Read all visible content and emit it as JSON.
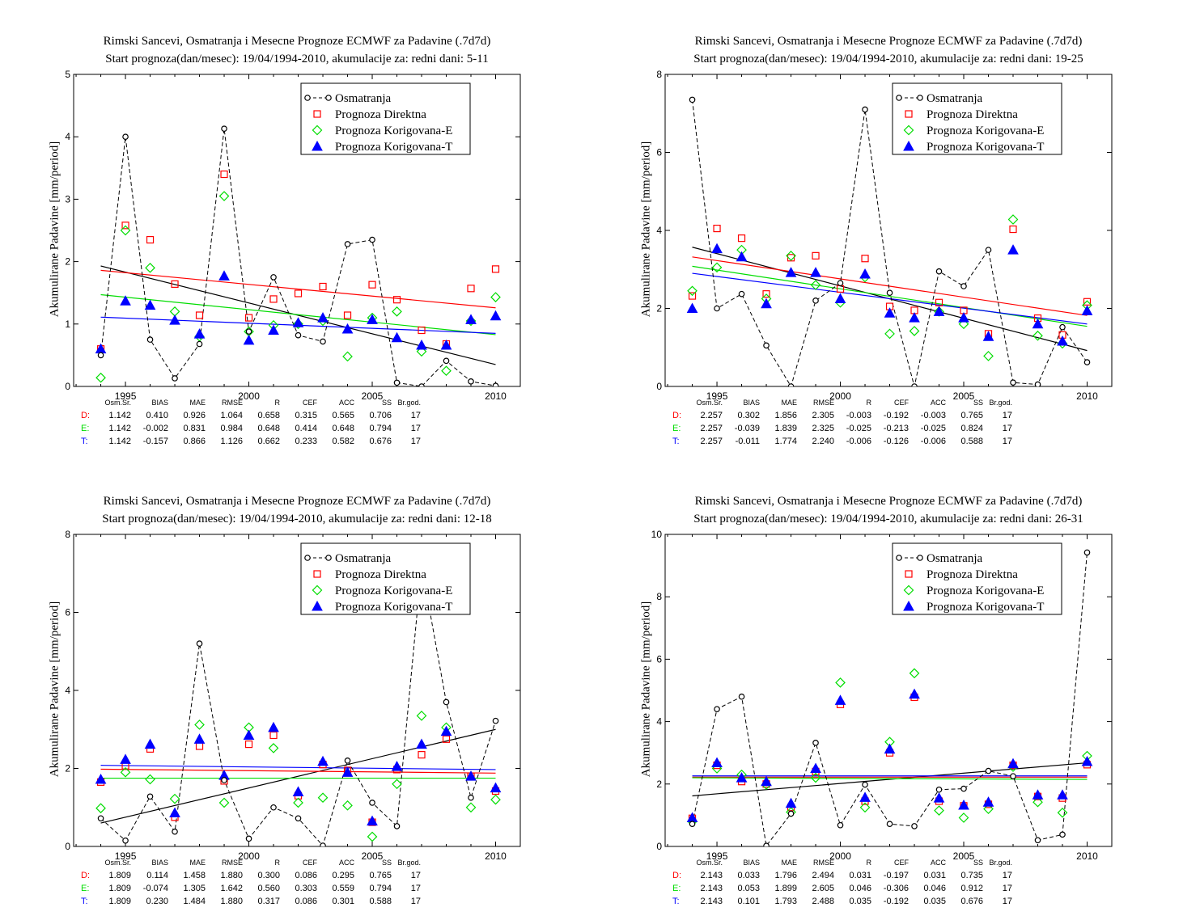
{
  "colors": {
    "observed": "#000000",
    "direct": "#ff0000",
    "corrE": "#00dd00",
    "corrT": "#0000ff"
  },
  "stat_headers": [
    "Osm.Sr.",
    "BIAS",
    "MAE",
    "RMSE",
    "R",
    "CEF",
    "ACC",
    "SS",
    "Br.god."
  ],
  "panels": [
    {
      "title1": "Rimski Sancevi, Osmatranja i Mesecne Prognoze ECMWF za Padavine (.7d7d)",
      "title2": "Start prognoza(dan/mesec): 19/04/1994-2010, akumulacije za: redni dani: 5-11",
      "ylabel": "Akumulirane Padavine [mm/period]",
      "stats": [
        {
          "label": "D:",
          "values": [
            "1.142",
            "0.410",
            "0.926",
            "1.064",
            "0.658",
            "0.315",
            "0.565",
            "0.706",
            "17"
          ]
        },
        {
          "label": "E:",
          "values": [
            "1.142",
            "-0.002",
            "0.831",
            "0.984",
            "0.648",
            "0.414",
            "0.648",
            "0.794",
            "17"
          ]
        },
        {
          "label": "T:",
          "values": [
            "1.142",
            "-0.157",
            "0.866",
            "1.126",
            "0.662",
            "0.233",
            "0.582",
            "0.676",
            "17"
          ]
        }
      ],
      "chart_data": {
        "type": "scatter",
        "x": [
          1994,
          1995,
          1996,
          1997,
          1998,
          1999,
          2000,
          2001,
          2002,
          2003,
          2004,
          2005,
          2006,
          2007,
          2008,
          2009,
          2010
        ],
        "xlim": [
          1992.9,
          2011
        ],
        "xticks": [
          1995,
          2000,
          2005,
          2010
        ],
        "ylim": [
          0,
          5
        ],
        "yticks": [
          0,
          1,
          2,
          3,
          4,
          5
        ],
        "legend": [
          "Osmatranja",
          "Prognoza Direktna",
          "Prognoza Korigovana-E",
          "Prognoza Korigovana-T"
        ],
        "legend_position": "top-right",
        "series": [
          {
            "name": "Osmatranja",
            "style": "dashed-circle",
            "values": [
              0.5,
              4.0,
              0.75,
              0.13,
              0.68,
              4.13,
              0.88,
              1.75,
              0.82,
              0.72,
              2.28,
              2.35,
              0.06,
              0.0,
              0.41,
              0.08,
              0.01
            ]
          },
          {
            "name": "Prognoza Direktna",
            "style": "square",
            "values": [
              0.6,
              2.58,
              2.35,
              1.64,
              1.14,
              3.4,
              1.1,
              1.4,
              1.49,
              1.6,
              1.14,
              1.63,
              1.39,
              0.9,
              0.68,
              1.57,
              1.88
            ]
          },
          {
            "name": "Prognoza Korigovana-E",
            "style": "diamond",
            "values": [
              0.14,
              2.5,
              1.9,
              1.2,
              0.8,
              3.05,
              0.88,
              0.98,
              1.0,
              1.05,
              0.48,
              1.1,
              1.2,
              0.56,
              0.25,
              1.05,
              1.43
            ]
          },
          {
            "name": "Prognoza Korigovana-T",
            "style": "triangle",
            "values": [
              0.6,
              1.37,
              1.3,
              1.06,
              0.84,
              1.77,
              0.74,
              0.9,
              1.02,
              1.1,
              0.92,
              1.07,
              0.78,
              0.66,
              0.66,
              1.07,
              1.13
            ]
          }
        ],
        "trends": [
          {
            "series": "Osmatranja",
            "y_start": 1.93,
            "y_end": 0.35
          },
          {
            "series": "Prognoza Direktna",
            "y_start": 1.86,
            "y_end": 1.26
          },
          {
            "series": "Prognoza Korigovana-E",
            "y_start": 1.47,
            "y_end": 0.83
          },
          {
            "series": "Prognoza Korigovana-T",
            "y_start": 1.11,
            "y_end": 0.85
          }
        ]
      }
    },
    {
      "title1": "Rimski Sancevi, Osmatranja i Mesecne Prognoze ECMWF za Padavine (.7d7d)",
      "title2": "Start prognoza(dan/mesec): 19/04/1994-2010, akumulacije za: redni dani: 19-25",
      "ylabel": "Akumulirane Padavine [mm/period]",
      "stats": [
        {
          "label": "D:",
          "values": [
            "2.257",
            "0.302",
            "1.856",
            "2.305",
            "-0.003",
            "-0.192",
            "-0.003",
            "0.765",
            "17"
          ]
        },
        {
          "label": "E:",
          "values": [
            "2.257",
            "-0.039",
            "1.839",
            "2.325",
            "-0.025",
            "-0.213",
            "-0.025",
            "0.824",
            "17"
          ]
        },
        {
          "label": "T:",
          "values": [
            "2.257",
            "-0.011",
            "1.774",
            "2.240",
            "-0.006",
            "-0.126",
            "-0.006",
            "0.588",
            "17"
          ]
        }
      ],
      "chart_data": {
        "type": "scatter",
        "x": [
          1994,
          1995,
          1996,
          1997,
          1998,
          1999,
          2000,
          2001,
          2002,
          2003,
          2004,
          2005,
          2006,
          2007,
          2008,
          2009,
          2010
        ],
        "xlim": [
          1992.9,
          2011
        ],
        "xticks": [
          1995,
          2000,
          2005,
          2010
        ],
        "ylim": [
          0,
          8
        ],
        "yticks": [
          0,
          2,
          4,
          6,
          8
        ],
        "legend": [
          "Osmatranja",
          "Prognoza Direktna",
          "Prognoza Korigovana-E",
          "Prognoza Korigovana-T"
        ],
        "legend_position": "top-right",
        "series": [
          {
            "name": "Osmatranja",
            "style": "dashed-circle",
            "values": [
              7.35,
              2.0,
              2.37,
              1.05,
              0.0,
              2.2,
              2.65,
              7.1,
              2.4,
              0.0,
              2.95,
              2.57,
              3.5,
              0.1,
              0.05,
              1.52,
              0.62
            ]
          },
          {
            "name": "Prognoza Direktna",
            "style": "square",
            "values": [
              2.32,
              4.05,
              3.8,
              2.37,
              3.3,
              3.35,
              2.5,
              3.28,
              2.05,
              1.95,
              2.15,
              1.95,
              1.35,
              4.03,
              1.75,
              1.32,
              2.17
            ]
          },
          {
            "name": "Prognoza Korigovana-E",
            "style": "diamond",
            "values": [
              2.45,
              3.05,
              3.5,
              2.25,
              3.35,
              2.6,
              2.15,
              2.8,
              1.35,
              1.42,
              1.92,
              1.6,
              0.78,
              4.28,
              1.3,
              1.1,
              2.08
            ]
          },
          {
            "name": "Prognoza Korigovana-T",
            "style": "triangle",
            "values": [
              2.0,
              3.53,
              3.32,
              2.12,
              2.92,
              2.92,
              2.25,
              2.88,
              1.88,
              1.76,
              1.92,
              1.76,
              1.28,
              3.5,
              1.6,
              1.16,
              1.94
            ]
          }
        ],
        "trends": [
          {
            "series": "Osmatranja",
            "y_start": 3.57,
            "y_end": 0.92
          },
          {
            "series": "Prognoza Direktna",
            "y_start": 3.32,
            "y_end": 1.82
          },
          {
            "series": "Prognoza Korigovana-E",
            "y_start": 3.08,
            "y_end": 1.54
          },
          {
            "series": "Prognoza Korigovana-T",
            "y_start": 2.9,
            "y_end": 1.6
          }
        ]
      }
    },
    {
      "title1": "Rimski Sancevi, Osmatranja i Mesecne Prognoze ECMWF za Padavine (.7d7d)",
      "title2": "Start prognoza(dan/mesec): 19/04/1994-2010, akumulacije za: redni dani: 12-18",
      "ylabel": "Akumulirane Padavine [mm/period]",
      "stats": [
        {
          "label": "D:",
          "values": [
            "1.809",
            "0.114",
            "1.458",
            "1.880",
            "0.300",
            "0.086",
            "0.295",
            "0.765",
            "17"
          ]
        },
        {
          "label": "E:",
          "values": [
            "1.809",
            "-0.074",
            "1.305",
            "1.642",
            "0.560",
            "0.303",
            "0.559",
            "0.794",
            "17"
          ]
        },
        {
          "label": "T:",
          "values": [
            "1.809",
            "0.230",
            "1.484",
            "1.880",
            "0.317",
            "0.086",
            "0.301",
            "0.588",
            "17"
          ]
        }
      ],
      "chart_data": {
        "type": "scatter",
        "x": [
          1994,
          1995,
          1996,
          1997,
          1998,
          1999,
          2000,
          2001,
          2002,
          2003,
          2004,
          2005,
          2006,
          2007,
          2008,
          2009,
          2010
        ],
        "xlim": [
          1992.9,
          2011
        ],
        "xticks": [
          1995,
          2000,
          2005,
          2010
        ],
        "ylim": [
          0,
          8
        ],
        "yticks": [
          0,
          2,
          4,
          6,
          8
        ],
        "legend": [
          "Osmatranja",
          "Prognoza Direktna",
          "Prognoza Korigovana-E",
          "Prognoza Korigovana-T"
        ],
        "legend_position": "top-right",
        "series": [
          {
            "name": "Osmatranja",
            "style": "dashed-circle",
            "values": [
              0.72,
              0.15,
              1.28,
              0.38,
              5.2,
              1.7,
              0.2,
              1.0,
              0.72,
              0.02,
              2.2,
              1.12,
              0.52,
              7.2,
              3.7,
              1.25,
              3.22
            ]
          },
          {
            "name": "Prognoza Direktna",
            "style": "square",
            "values": [
              1.65,
              2.07,
              2.5,
              0.75,
              2.57,
              1.68,
              2.62,
              2.85,
              1.3,
              2.1,
              1.95,
              0.62,
              1.97,
              2.35,
              2.75,
              1.8,
              1.42
            ]
          },
          {
            "name": "Prognoza Korigovana-E",
            "style": "diamond",
            "values": [
              0.98,
              1.9,
              1.72,
              1.22,
              3.12,
              1.12,
              3.05,
              2.52,
              1.12,
              1.25,
              1.05,
              0.25,
              1.6,
              3.35,
              3.05,
              1.0,
              1.2
            ]
          },
          {
            "name": "Prognoza Korigovana-T",
            "style": "triangle",
            "values": [
              1.72,
              2.23,
              2.62,
              0.86,
              2.75,
              1.82,
              2.85,
              3.05,
              1.4,
              2.18,
              1.9,
              0.65,
              2.05,
              2.62,
              2.95,
              1.8,
              1.5
            ]
          }
        ],
        "trends": [
          {
            "series": "Osmatranja",
            "y_start": 0.6,
            "y_end": 3.0
          },
          {
            "series": "Prognoza Direktna",
            "y_start": 1.98,
            "y_end": 1.88
          },
          {
            "series": "Prognoza Korigovana-E",
            "y_start": 1.75,
            "y_end": 1.75
          },
          {
            "series": "Prognoza Korigovana-T",
            "y_start": 2.08,
            "y_end": 1.97
          }
        ]
      }
    },
    {
      "title1": "Rimski Sancevi, Osmatranja i Mesecne Prognoze ECMWF za Padavine (.7d7d)",
      "title2": "Start prognoza(dan/mesec): 19/04/1994-2010, akumulacije za: redni dani: 26-31",
      "ylabel": "Akumulirane Padavine [mm/period]",
      "stats": [
        {
          "label": "D:",
          "values": [
            "2.143",
            "0.033",
            "1.796",
            "2.494",
            "0.031",
            "-0.197",
            "0.031",
            "0.735",
            "17"
          ]
        },
        {
          "label": "E:",
          "values": [
            "2.143",
            "0.053",
            "1.899",
            "2.605",
            "0.046",
            "-0.306",
            "0.046",
            "0.912",
            "17"
          ]
        },
        {
          "label": "T:",
          "values": [
            "2.143",
            "0.101",
            "1.793",
            "2.488",
            "0.035",
            "-0.192",
            "0.035",
            "0.676",
            "17"
          ]
        }
      ],
      "chart_data": {
        "type": "scatter",
        "x": [
          1994,
          1995,
          1996,
          1997,
          1998,
          1999,
          2000,
          2001,
          2002,
          2003,
          2004,
          2005,
          2006,
          2007,
          2008,
          2009,
          2010
        ],
        "xlim": [
          1992.9,
          2011
        ],
        "xticks": [
          1995,
          2000,
          2005,
          2010
        ],
        "ylim": [
          0,
          10
        ],
        "yticks": [
          0,
          2,
          4,
          6,
          8,
          10
        ],
        "legend": [
          "Osmatranja",
          "Prognoza Direktna",
          "Prognoza Korigovana-E",
          "Prognoza Korigovana-T"
        ],
        "legend_position": "top-right",
        "series": [
          {
            "name": "Osmatranja",
            "style": "dashed-circle",
            "values": [
              0.72,
              4.4,
              4.8,
              0.02,
              1.05,
              3.32,
              0.68,
              1.98,
              0.72,
              0.65,
              1.82,
              1.85,
              2.42,
              2.25,
              0.2,
              0.38,
              9.42
            ]
          },
          {
            "name": "Prognoza Direktna",
            "style": "square",
            "values": [
              0.9,
              2.6,
              2.08,
              2.0,
              1.25,
              2.4,
              4.55,
              1.45,
              3.0,
              4.78,
              1.45,
              1.3,
              1.35,
              2.6,
              1.6,
              1.55,
              2.62
            ]
          },
          {
            "name": "Prognoza Korigovana-E",
            "style": "diamond",
            "values": [
              0.8,
              2.5,
              2.3,
              1.98,
              1.1,
              2.2,
              5.25,
              1.25,
              3.35,
              5.55,
              1.15,
              0.92,
              1.2,
              2.55,
              1.42,
              1.08,
              2.9
            ]
          },
          {
            "name": "Prognoza Korigovana-T",
            "style": "triangle",
            "values": [
              0.92,
              2.68,
              2.2,
              2.08,
              1.38,
              2.5,
              4.68,
              1.57,
              3.12,
              4.88,
              1.55,
              1.32,
              1.42,
              2.65,
              1.65,
              1.65,
              2.72
            ]
          }
        ],
        "trends": [
          {
            "series": "Osmatranja",
            "y_start": 1.62,
            "y_end": 2.68
          },
          {
            "series": "Prognoza Direktna",
            "y_start": 2.22,
            "y_end": 2.22
          },
          {
            "series": "Prognoza Korigovana-E",
            "y_start": 2.2,
            "y_end": 2.15
          },
          {
            "series": "Prognoza Korigovana-T",
            "y_start": 2.26,
            "y_end": 2.26
          }
        ]
      }
    }
  ]
}
